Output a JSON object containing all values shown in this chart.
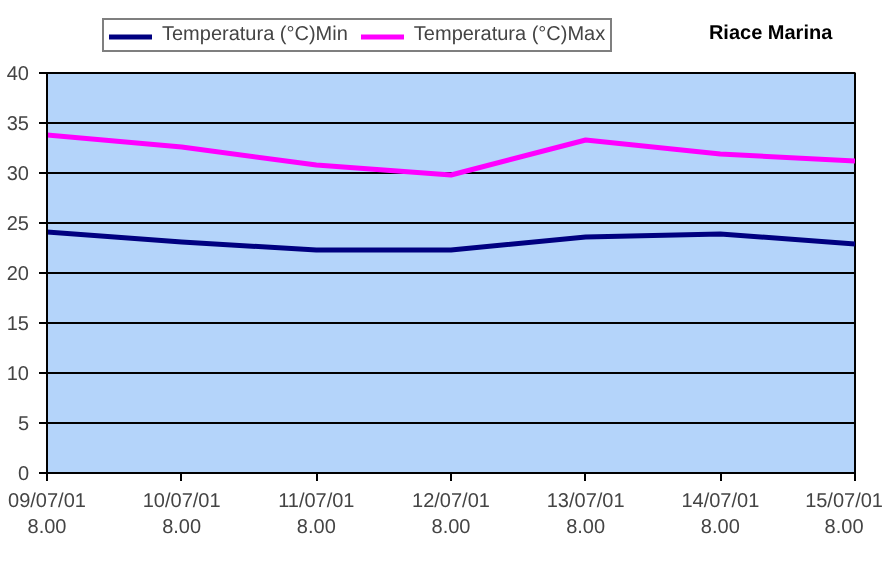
{
  "chart_data": {
    "type": "line",
    "title": "Riace Marina",
    "categories": [
      "09/07/01\n8.00",
      "10/07/01\n8.00",
      "11/07/01\n8.00",
      "12/07/01\n8.00",
      "13/07/01\n8.00",
      "14/07/01\n8.00",
      "15/07/01\n8.00"
    ],
    "series": [
      {
        "name": "Temperatura (°C)Min",
        "color": "#000080",
        "values": [
          24.1,
          23.1,
          22.3,
          22.3,
          23.6,
          23.9,
          22.9
        ]
      },
      {
        "name": "Temperatura (°C)Max",
        "color": "#ff00ff",
        "values": [
          33.8,
          32.6,
          30.8,
          29.8,
          33.3,
          31.9,
          31.2
        ]
      }
    ],
    "ylim": [
      0,
      40
    ],
    "yticks": [
      0,
      5,
      10,
      15,
      20,
      25,
      30,
      35,
      40
    ],
    "grid": "y",
    "legend": "top",
    "marker": "none",
    "line_style": "solid"
  }
}
